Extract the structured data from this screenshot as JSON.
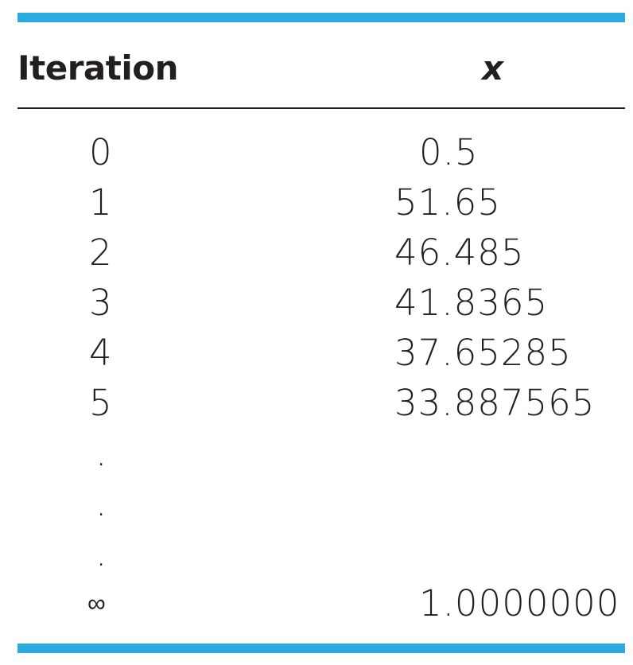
{
  "table": {
    "accent_color": "#29abe2",
    "headers": {
      "iteration": "Iteration",
      "x": "x"
    },
    "rows": [
      {
        "iteration": "0",
        "x": "0.5"
      },
      {
        "iteration": "1",
        "x": "51.65"
      },
      {
        "iteration": "2",
        "x": "46.485"
      },
      {
        "iteration": "3",
        "x": "41.8365"
      },
      {
        "iteration": "4",
        "x": "37.65285"
      },
      {
        "iteration": "5",
        "x": "33.887565"
      },
      {
        "iteration": ".",
        "x": ""
      },
      {
        "iteration": ".",
        "x": ""
      },
      {
        "iteration": ".",
        "x": ""
      },
      {
        "iteration": "∞",
        "x": "1.0000000"
      }
    ]
  }
}
